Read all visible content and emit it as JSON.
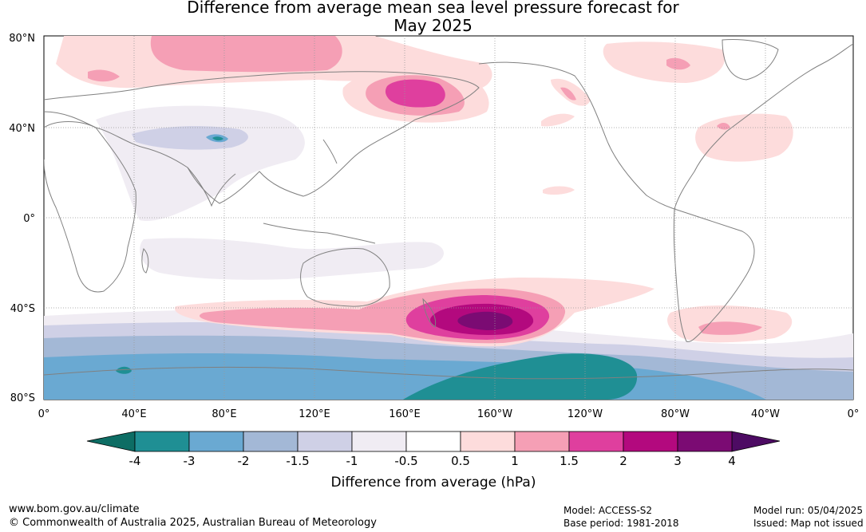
{
  "title_line1": "Difference from average mean sea level pressure forecast for",
  "title_line2": "May 2025",
  "map": {
    "lat_labels": [
      "80°N",
      "40°N",
      "0°",
      "40°S",
      "80°S"
    ],
    "lon_labels": [
      "0°",
      "40°E",
      "80°E",
      "120°E",
      "160°E",
      "160°W",
      "120°W",
      "80°W",
      "40°W",
      "0°"
    ]
  },
  "legend": {
    "tick_labels": [
      "-4",
      "-3",
      "-2",
      "-1.5",
      "-1",
      "-0.5",
      "0.5",
      "1",
      "1.5",
      "2",
      "3",
      "4"
    ],
    "colors": [
      "#1f8f94",
      "#6aa9d2",
      "#a3b8d6",
      "#cfd0e6",
      "#f0ecf3",
      "#ffffff",
      "#fddcdc",
      "#f59fb5",
      "#df3f9e",
      "#b3097e",
      "#7b0b73"
    ],
    "low_extend_color": "#0d6d64",
    "high_extend_color": "#4d0b63",
    "label": "Difference from average (hPa)"
  },
  "footer": {
    "website": "www.bom.gov.au/climate",
    "copyright": "© Commonwealth of Australia 2025, Australian Bureau of Meteorology",
    "model": "Model: ACCESS-S2",
    "base_period": "Base period: 1981-2018",
    "model_run": "Model run: 05/04/2025",
    "issued": "Issued: Map not issued"
  }
}
